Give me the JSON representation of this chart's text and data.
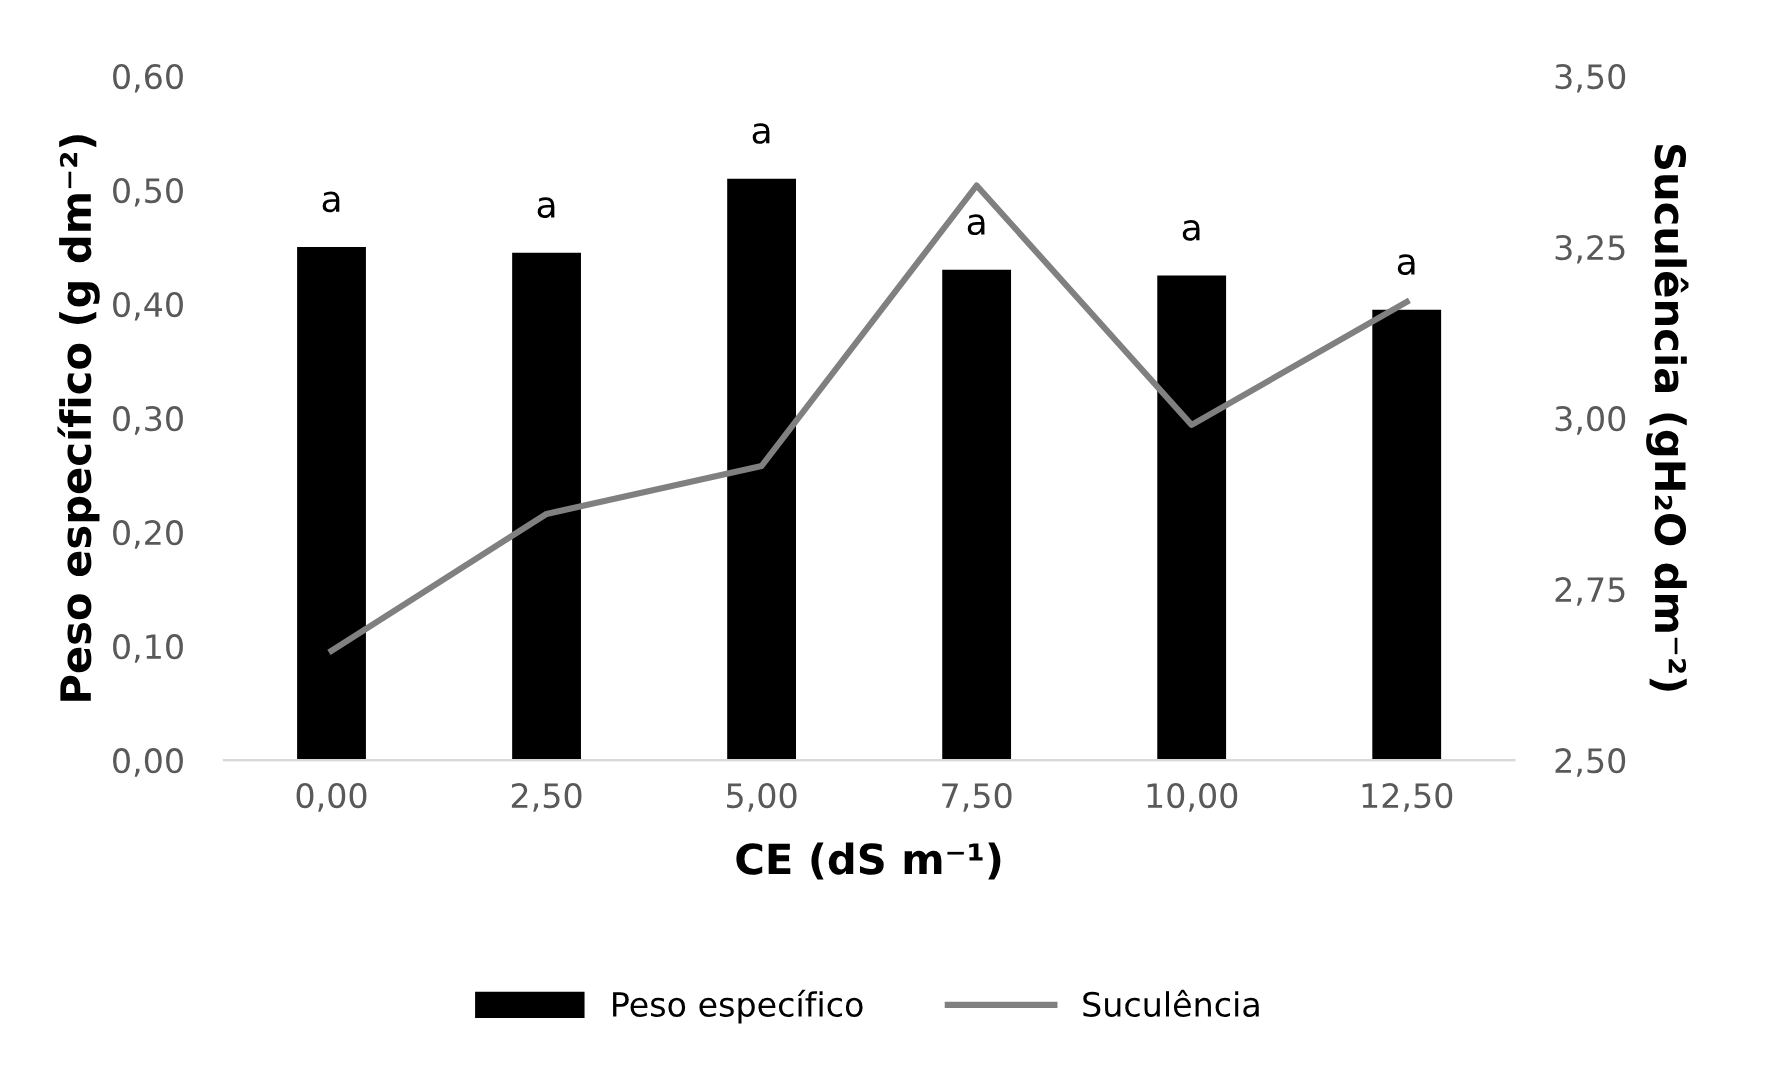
{
  "chart_data": {
    "type": "bar",
    "xlabel": "CE (dS m⁻¹)",
    "ylabel": "Peso específico (g dm⁻²)",
    "y2label": "Suculência (gH₂O dm⁻²)",
    "categories": [
      "0,00",
      "2,50",
      "5,00",
      "7,50",
      "10,00",
      "12,50"
    ],
    "series": [
      {
        "name": "Peso específico",
        "color": "#000000",
        "values": [
          0.45,
          0.445,
          0.51,
          0.43,
          0.425,
          0.395
        ]
      },
      {
        "name": "Suculência",
        "type": "line",
        "axis": "y2",
        "color": "#808080",
        "values": [
          2.66,
          2.86,
          2.93,
          3.34,
          2.99,
          3.17
        ]
      }
    ],
    "ylim": [
      0,
      0.6
    ],
    "yticks": [
      {
        "value": 0,
        "label": "0,00"
      },
      {
        "value": 0.1,
        "label": "0,10"
      },
      {
        "value": 0.2,
        "label": "0,20"
      },
      {
        "value": 0.3,
        "label": "0,30"
      },
      {
        "value": 0.4,
        "label": "0,40"
      },
      {
        "value": 0.5,
        "label": "0,50"
      },
      {
        "value": 0.6,
        "label": "0,60"
      }
    ],
    "y2lim": [
      2.5,
      3.5
    ],
    "y2ticks": [
      {
        "value": 2.5,
        "label": "2,50"
      },
      {
        "value": 2.75,
        "label": "2,75"
      },
      {
        "value": 3.0,
        "label": "3,00"
      },
      {
        "value": 3.25,
        "label": "3,25"
      },
      {
        "value": 3.5,
        "label": "3,50"
      }
    ],
    "annotations": [
      {
        "text": "a",
        "x": "0,00",
        "y": 0.45
      },
      {
        "text": "a",
        "x": "2,50",
        "y": 0.445
      },
      {
        "text": "a",
        "x": "5,00",
        "y": 0.51
      },
      {
        "text": "a",
        "x": "7,50",
        "y": 0.43
      },
      {
        "text": "a",
        "x": "10,00",
        "y": 0.425
      },
      {
        "text": "a",
        "x": "12,50",
        "y": 0.395
      }
    ],
    "grid": false,
    "legend": "bottom",
    "marker": "none",
    "line_style": "solid"
  }
}
